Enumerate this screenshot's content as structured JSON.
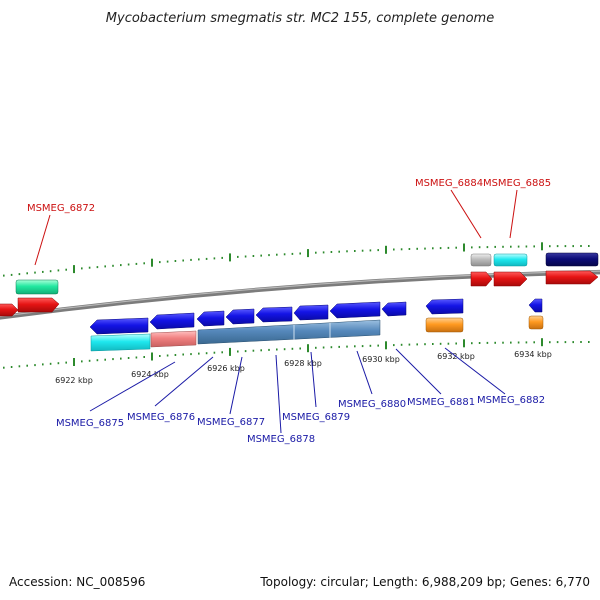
{
  "title": "Mycobacterium smegmatis str. MC2 155, complete genome",
  "footer": {
    "accession": "Accession: NC_008596",
    "summary": "Topology: circular; Length: 6,988,209 bp; Genes: 6,770"
  },
  "colors": {
    "label_red": "#cc1111",
    "label_blue": "#1a1aa6",
    "tick_green": "#2d8a2d",
    "backbone": "#8a8a8a"
  },
  "tick_labels": [
    "6922 kbp",
    "6924 kbp",
    "6926 kbp",
    "6928 kbp",
    "6930 kbp",
    "6932 kbp",
    "6934 kbp"
  ],
  "gene_labels_top": [
    "MSMEG_6872",
    "MSMEG_6884",
    "MSMEG_6885"
  ],
  "gene_labels_bottom": [
    "MSMEG_6875",
    "MSMEG_6876",
    "MSMEG_6877",
    "MSMEG_6878",
    "MSMEG_6879",
    "MSMEG_6880",
    "MSMEG_6881",
    "MSMEG_6882"
  ]
}
